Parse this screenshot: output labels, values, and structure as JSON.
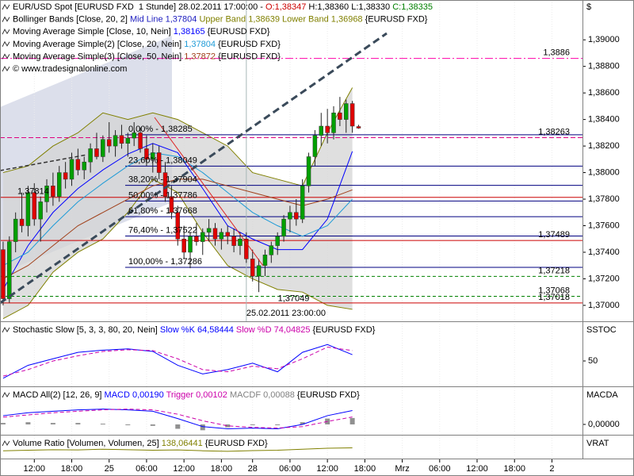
{
  "chart_data": [
    {
      "type": "candlestick",
      "header": [
        [
          {
            "text": "EUR/USD Spot [EURUSD FXD  1 Stunde] 28.02.2011 17:00:00 - ",
            "color": "#000000"
          },
          {
            "text": "O:1,38347",
            "color": "#cc0000"
          },
          {
            "text": " H:1,38360 L:1,38330 ",
            "color": "#000000"
          },
          {
            "text": "C:1,38335",
            "color": "#008000"
          }
        ],
        [
          {
            "text": "Bollinger Bands [Close, 20, 2] ",
            "color": "#000000"
          },
          {
            "text": "Mid Line 1,37804",
            "color": "#2020c0"
          },
          {
            "text": " Upper Band 1,38639 Lower Band 1,36968",
            "color": "#808000"
          },
          {
            "text": " {EURUSD FXD}",
            "color": "#000000"
          }
        ],
        [
          {
            "text": "Moving Average Simple [Close, 10, Nein] ",
            "color": "#000000"
          },
          {
            "text": "1,38165",
            "color": "#0000ff"
          },
          {
            "text": " {EURUSD FXD}",
            "color": "#000000"
          }
        ],
        [
          {
            "text": "Moving Average Simple(2) [Close, 20, Nein] ",
            "color": "#000000"
          },
          {
            "text": "1,37804",
            "color": "#1e9bd7"
          },
          {
            "text": " {EURUSD FXD}",
            "color": "#000000"
          }
        ],
        [
          {
            "text": "Moving Average Simple(3) [Close, 50, Nein] ",
            "color": "#000000"
          },
          {
            "text": "1,37872",
            "color": "#a0401a"
          },
          {
            "text": " {EURUSD FXD}",
            "color": "#000000"
          }
        ],
        [
          {
            "text": "© www.tradesignalonline.com",
            "color": "#000000"
          }
        ]
      ],
      "side_label": "$",
      "xlim": [
        -0.5,
        92.9
      ],
      "ylim": [
        1.3688,
        1.393
      ],
      "yticks": [
        {
          "value": 1.37,
          "label": "1,37000"
        },
        {
          "value": 1.372,
          "label": "1,37200"
        },
        {
          "value": 1.374,
          "label": "1,37400"
        },
        {
          "value": 1.376,
          "label": "1,37600"
        },
        {
          "value": 1.378,
          "label": "1,37800"
        },
        {
          "value": 1.38,
          "label": "1,38000"
        },
        {
          "value": 1.382,
          "label": "1,38200"
        },
        {
          "value": 1.384,
          "label": "1,38400"
        },
        {
          "value": 1.386,
          "label": "1,38600"
        },
        {
          "value": 1.388,
          "label": "1,38800"
        },
        {
          "value": 1.39,
          "label": "1,39000"
        }
      ],
      "xticks": [
        {
          "value": 5,
          "label": "12:00"
        },
        {
          "value": 11,
          "label": "18:00"
        },
        {
          "value": 17,
          "label": "25"
        },
        {
          "value": 23,
          "label": "06:00"
        },
        {
          "value": 29,
          "label": "12:00"
        },
        {
          "value": 35,
          "label": "18:00"
        },
        {
          "value": 40,
          "label": "28"
        },
        {
          "value": 46,
          "label": "06:00"
        },
        {
          "value": 52,
          "label": "12:00"
        },
        {
          "value": 58,
          "label": "18:00"
        },
        {
          "value": 64,
          "label": "Mrz"
        },
        {
          "value": 70,
          "label": "06:00"
        },
        {
          "value": 76,
          "label": "12:00"
        },
        {
          "value": 82,
          "label": "18:00"
        },
        {
          "value": 88,
          "label": "2"
        }
      ],
      "up_color": "#00a000",
      "down_color": "#e00000",
      "open": [
        1.3742,
        1.3705,
        1.3748,
        1.3765,
        1.376,
        1.3785,
        1.3765,
        1.3778,
        1.379,
        1.3782,
        1.38,
        1.3795,
        1.381,
        1.3802,
        1.3808,
        1.3818,
        1.3812,
        1.3825,
        1.382,
        1.3828,
        1.3822,
        1.3826,
        1.383,
        1.3818,
        1.381,
        1.3815,
        1.38,
        1.3782,
        1.377,
        1.375,
        1.374,
        1.3752,
        1.3748,
        1.3755,
        1.3758,
        1.375,
        1.3755,
        1.3752,
        1.3745,
        1.375,
        1.3735,
        1.3722,
        1.373,
        1.3738,
        1.3745,
        1.3752,
        1.3765,
        1.377,
        1.3765,
        1.379,
        1.3812,
        1.3828,
        1.3835,
        1.383,
        1.3845,
        1.384,
        1.3852,
        1.38347
      ],
      "high": [
        1.3748,
        1.3752,
        1.377,
        1.3785,
        1.379,
        1.3792,
        1.3782,
        1.3795,
        1.38,
        1.3805,
        1.3808,
        1.3815,
        1.3818,
        1.3812,
        1.3822,
        1.383,
        1.3828,
        1.3838,
        1.3832,
        1.3836,
        1.383,
        1.3838,
        1.3834,
        1.3828,
        1.3822,
        1.382,
        1.3808,
        1.379,
        1.3775,
        1.376,
        1.3755,
        1.3762,
        1.3758,
        1.3765,
        1.3762,
        1.3758,
        1.376,
        1.3758,
        1.3755,
        1.3755,
        1.3742,
        1.3735,
        1.3742,
        1.3748,
        1.3755,
        1.3768,
        1.3775,
        1.378,
        1.3795,
        1.3815,
        1.3832,
        1.3845,
        1.3848,
        1.385,
        1.3857,
        1.3855,
        1.3854,
        1.3836
      ],
      "low": [
        1.37,
        1.3702,
        1.374,
        1.3755,
        1.3752,
        1.376,
        1.3748,
        1.377,
        1.3775,
        1.3778,
        1.3788,
        1.379,
        1.3798,
        1.3795,
        1.38,
        1.381,
        1.3808,
        1.3815,
        1.3812,
        1.3818,
        1.3812,
        1.382,
        1.3815,
        1.3805,
        1.38,
        1.3795,
        1.3778,
        1.3765,
        1.3745,
        1.3735,
        1.3728,
        1.3745,
        1.3738,
        1.3748,
        1.3745,
        1.3742,
        1.3746,
        1.374,
        1.3738,
        1.3732,
        1.3718,
        1.371,
        1.3722,
        1.3732,
        1.3738,
        1.3748,
        1.3755,
        1.376,
        1.3762,
        1.3785,
        1.3805,
        1.382,
        1.3822,
        1.3825,
        1.3835,
        1.383,
        1.383,
        1.3833
      ],
      "close": [
        1.3705,
        1.3748,
        1.3765,
        1.376,
        1.3785,
        1.3765,
        1.3778,
        1.379,
        1.3782,
        1.38,
        1.3795,
        1.381,
        1.3802,
        1.3808,
        1.3818,
        1.3812,
        1.3825,
        1.382,
        1.3828,
        1.3822,
        1.3826,
        1.383,
        1.3818,
        1.381,
        1.3815,
        1.38,
        1.3782,
        1.377,
        1.375,
        1.374,
        1.3752,
        1.3748,
        1.3755,
        1.3758,
        1.375,
        1.3755,
        1.3752,
        1.3745,
        1.375,
        1.3735,
        1.3722,
        1.373,
        1.3738,
        1.3745,
        1.3752,
        1.3765,
        1.377,
        1.3765,
        1.379,
        1.3812,
        1.3828,
        1.3835,
        1.383,
        1.3845,
        1.384,
        1.3852,
        1.3835,
        1.38335
      ],
      "bands": {
        "x": [
          0,
          4,
          8,
          12,
          16,
          20,
          24,
          28,
          32,
          36,
          40,
          44,
          48,
          52,
          56
        ],
        "upper": [
          1.38,
          1.3805,
          1.382,
          1.383,
          1.3845,
          1.384,
          1.3845,
          1.384,
          1.383,
          1.382,
          1.38,
          1.3795,
          1.379,
          1.383,
          1.3864
        ],
        "lower": [
          1.369,
          1.37,
          1.3725,
          1.374,
          1.375,
          1.377,
          1.3795,
          1.3785,
          1.3755,
          1.373,
          1.372,
          1.3712,
          1.371,
          1.37,
          1.3697
        ],
        "color": "#808000",
        "fill": "#d4d4d4"
      },
      "indicators": [
        {
          "color": "#0000ff",
          "x": [
            0,
            4,
            8,
            12,
            16,
            20,
            24,
            28,
            32,
            36,
            40,
            44,
            48,
            52,
            56
          ],
          "values": [
            1.3712,
            1.3745,
            1.377,
            1.3788,
            1.3802,
            1.3814,
            1.3822,
            1.3815,
            1.3788,
            1.376,
            1.375,
            1.3742,
            1.3742,
            1.3765,
            1.3816
          ]
        },
        {
          "color": "#1e9bd7",
          "x": [
            0,
            4,
            8,
            12,
            16,
            20,
            24,
            28,
            32,
            36,
            40,
            44,
            48,
            52,
            56
          ],
          "values": [
            1.373,
            1.374,
            1.376,
            1.3778,
            1.3792,
            1.3805,
            1.3815,
            1.3812,
            1.38,
            1.3785,
            1.377,
            1.376,
            1.3752,
            1.376,
            1.378
          ]
        },
        {
          "color": "#a0401a",
          "x": [
            0,
            4,
            8,
            12,
            16,
            20,
            24,
            28,
            32,
            36,
            40,
            44,
            48,
            52,
            56
          ],
          "values": [
            1.372,
            1.373,
            1.3745,
            1.376,
            1.377,
            1.378,
            1.379,
            1.3795,
            1.3795,
            1.379,
            1.3785,
            1.378,
            1.3775,
            1.378,
            1.3787
          ]
        }
      ],
      "levels": [
        {
          "value": 1.3886,
          "label": "1,3886",
          "color": "#ff00aa",
          "dash": "10,3,2,3",
          "side": "right"
        },
        {
          "value": 1.38263,
          "label": "1,38263",
          "color": "#e0007f",
          "dash": "6,3",
          "side": "right"
        },
        {
          "value": 1.37814,
          "label": "1,37814",
          "color": "#cc0000",
          "side": "left"
        },
        {
          "value": 1.37489,
          "label": "1,37489",
          "color": "#cc0000",
          "side": "right"
        },
        {
          "value": 1.37218,
          "label": "1,37218",
          "color": "#008000",
          "dash": "4,3",
          "side": "right"
        },
        {
          "value": 1.37068,
          "label": "1,37068",
          "color": "#008000",
          "dash": "4,3",
          "side": "right"
        },
        {
          "value": 1.37018,
          "label": "1,37018",
          "color": "#cc0000",
          "side": "right"
        }
      ],
      "fib": {
        "color": "#000080",
        "levels": [
          {
            "value": 1.38285,
            "label": "0,00% - 1,38285"
          },
          {
            "value": 1.38049,
            "label": "23,60% - 1,38049"
          },
          {
            "value": 1.37904,
            "label": "38,20% - 1,37904"
          },
          {
            "value": 1.37786,
            "label": "50,00% - 1,37786"
          },
          {
            "value": 1.37668,
            "label": "61,80% - 1,37668"
          },
          {
            "value": 1.37522,
            "label": "76,40% - 1,37522"
          },
          {
            "value": 1.37286,
            "label": "100,00% - 1,37286"
          }
        ]
      },
      "annotations": [
        {
          "x": 41,
          "value": 1.37049,
          "label": "1,37049",
          "color": "#808000"
        }
      ],
      "marker": {
        "x": 39,
        "label": "25.02.2011 23:00:00",
        "color": "#2f7f7f"
      }
    },
    {
      "type": "line",
      "header": [
        [
          {
            "text": "Stochastic Slow [5, 3, 3, 80, 20, Nein] ",
            "color": "#000000"
          },
          {
            "text": "Slow %K 64,58444",
            "color": "#0000ff"
          },
          {
            "text": " Slow %D 74,04825",
            "color": "#cc00aa"
          },
          {
            "text": " {EURUSD FXD}",
            "color": "#000000"
          }
        ]
      ],
      "side_label": "SSTOC",
      "xlim": [
        -0.5,
        92.9
      ],
      "ylim": [
        -5,
        138
      ],
      "yticks": [
        50
      ],
      "x": [
        0,
        4,
        8,
        12,
        16,
        20,
        24,
        28,
        32,
        36,
        40,
        44,
        48,
        52,
        56
      ],
      "series": [
        {
          "color": "#0000ff",
          "values": [
            10,
            40,
            55,
            70,
            75,
            78,
            72,
            40,
            20,
            30,
            45,
            25,
            70,
            88,
            64.58444
          ]
        },
        {
          "color": "#cc00aa",
          "dash": "5,3",
          "values": [
            15,
            30,
            50,
            62,
            72,
            76,
            74,
            55,
            30,
            25,
            38,
            32,
            55,
            82,
            74.04825
          ]
        }
      ]
    },
    {
      "type": "line",
      "header": [
        [
          {
            "text": "MACD All(2) [12, 26, 9] ",
            "color": "#000000"
          },
          {
            "text": "MACD 0,00190",
            "color": "#0000ff"
          },
          {
            "text": " Trigger 0,00102",
            "color": "#cc00aa"
          },
          {
            "text": " MACDF 0,00088",
            "color": "#808080"
          },
          {
            "text": " {EURUSD FXD}",
            "color": "#000000"
          }
        ]
      ],
      "side_label": "MACDA",
      "xlim": [
        -0.5,
        92.9
      ],
      "ylim": [
        -0.0012,
        0.005
      ],
      "yticks": [
        {
          "value": 0,
          "label": "0,00000"
        }
      ],
      "x": [
        0,
        4,
        8,
        12,
        16,
        20,
        24,
        28,
        32,
        36,
        40,
        44,
        48,
        52,
        56
      ],
      "series": [
        {
          "color": "#909090",
          "style": "bar",
          "values": [
            0.0002,
            0.0003,
            0.0002,
            0.0002,
            0.0001,
            -0.0001,
            -0.0002,
            -0.0006,
            -0.0008,
            -0.0004,
            -0.0001,
            -0.0001,
            0.0003,
            0.0008,
            0.00088
          ]
        },
        {
          "color": "#0000ff",
          "values": [
            0.0012,
            0.0016,
            0.0018,
            0.002,
            0.0021,
            0.002,
            0.0018,
            0.0008,
            -0.0003,
            -0.0006,
            -0.0005,
            -0.0006,
            0.0,
            0.0012,
            0.0019
          ]
        },
        {
          "color": "#cc00aa",
          "dash": "5,3",
          "values": [
            0.001,
            0.0013,
            0.0016,
            0.0018,
            0.002,
            0.0021,
            0.002,
            0.0014,
            0.0005,
            -0.0002,
            -0.0004,
            -0.0005,
            -0.0003,
            0.0004,
            0.00102
          ]
        }
      ]
    },
    {
      "type": "line",
      "header": [
        [
          {
            "text": "Volume Ratio [Volumen, Volumen, 25] ",
            "color": "#000000"
          },
          {
            "text": "138,06441",
            "color": "#808000"
          },
          {
            "text": " {EURUSD FXD}",
            "color": "#000000"
          }
        ]
      ],
      "side_label": "VRAT",
      "xlim": [
        -0.5,
        92.9
      ],
      "ylim": [
        50,
        250
      ],
      "x": [
        0,
        4,
        8,
        12,
        16,
        20,
        24,
        28,
        32,
        36,
        40,
        44,
        48,
        52,
        56
      ],
      "series": [
        {
          "color": "#808000",
          "values": [
            110,
            115,
            120,
            118,
            125,
            120,
            115,
            118,
            110,
            105,
            112,
            115,
            125,
            135,
            138.06441
          ]
        }
      ]
    }
  ]
}
